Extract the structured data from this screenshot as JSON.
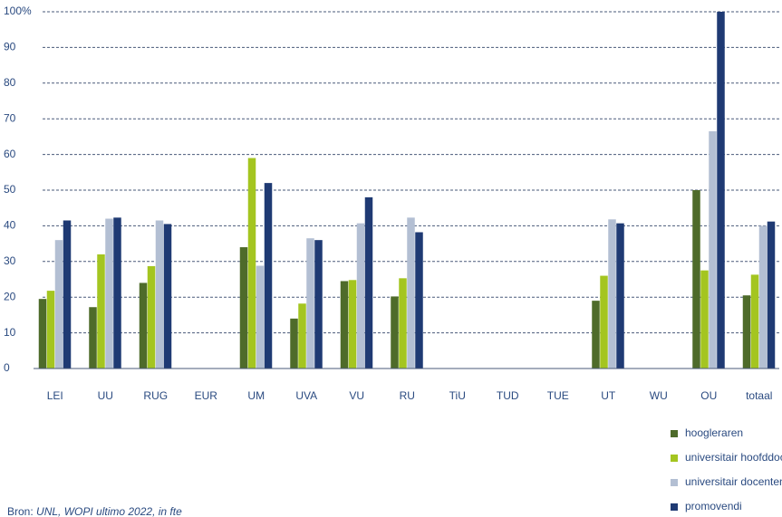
{
  "chart_data": {
    "type": "bar",
    "categories": [
      "LEI",
      "UU",
      "RUG",
      "EUR",
      "UM",
      "UVA",
      "VU",
      "RU",
      "TiU",
      "TUD",
      "TUE",
      "UT",
      "WU",
      "OU",
      "totaal"
    ],
    "series": [
      {
        "name": "hoogleraren",
        "color": "#4e6b2a",
        "values": [
          19.5,
          17.2,
          24,
          null,
          34,
          14,
          24.5,
          20.2,
          null,
          null,
          null,
          19,
          null,
          50,
          20.5
        ]
      },
      {
        "name": "universitair hoofddocenten",
        "color": "#a4c520",
        "values": [
          21.8,
          32,
          28.7,
          null,
          59,
          18.2,
          24.8,
          25.3,
          null,
          null,
          null,
          26,
          null,
          27.5,
          26.3
        ]
      },
      {
        "name": "universitair docenten",
        "color": "#b3bfd3",
        "values": [
          36,
          42,
          41.5,
          null,
          28.8,
          36.5,
          40.7,
          42.3,
          null,
          null,
          null,
          41.8,
          null,
          66.5,
          40
        ]
      },
      {
        "name": "promovendi",
        "color": "#1f3a73",
        "values": [
          41.5,
          42.3,
          40.5,
          null,
          52,
          36,
          48,
          38.2,
          null,
          null,
          null,
          40.7,
          null,
          100,
          41.2
        ]
      }
    ],
    "ylim": [
      0,
      100
    ],
    "yticks": [
      0,
      10,
      20,
      30,
      40,
      50,
      60,
      70,
      80,
      90,
      {
        "value": 100,
        "label": "100%"
      }
    ],
    "grid": true,
    "legend": "bottom-right",
    "source_label": "Bron:",
    "source": "UNL, WOPI ultimo 2022, in fte"
  }
}
